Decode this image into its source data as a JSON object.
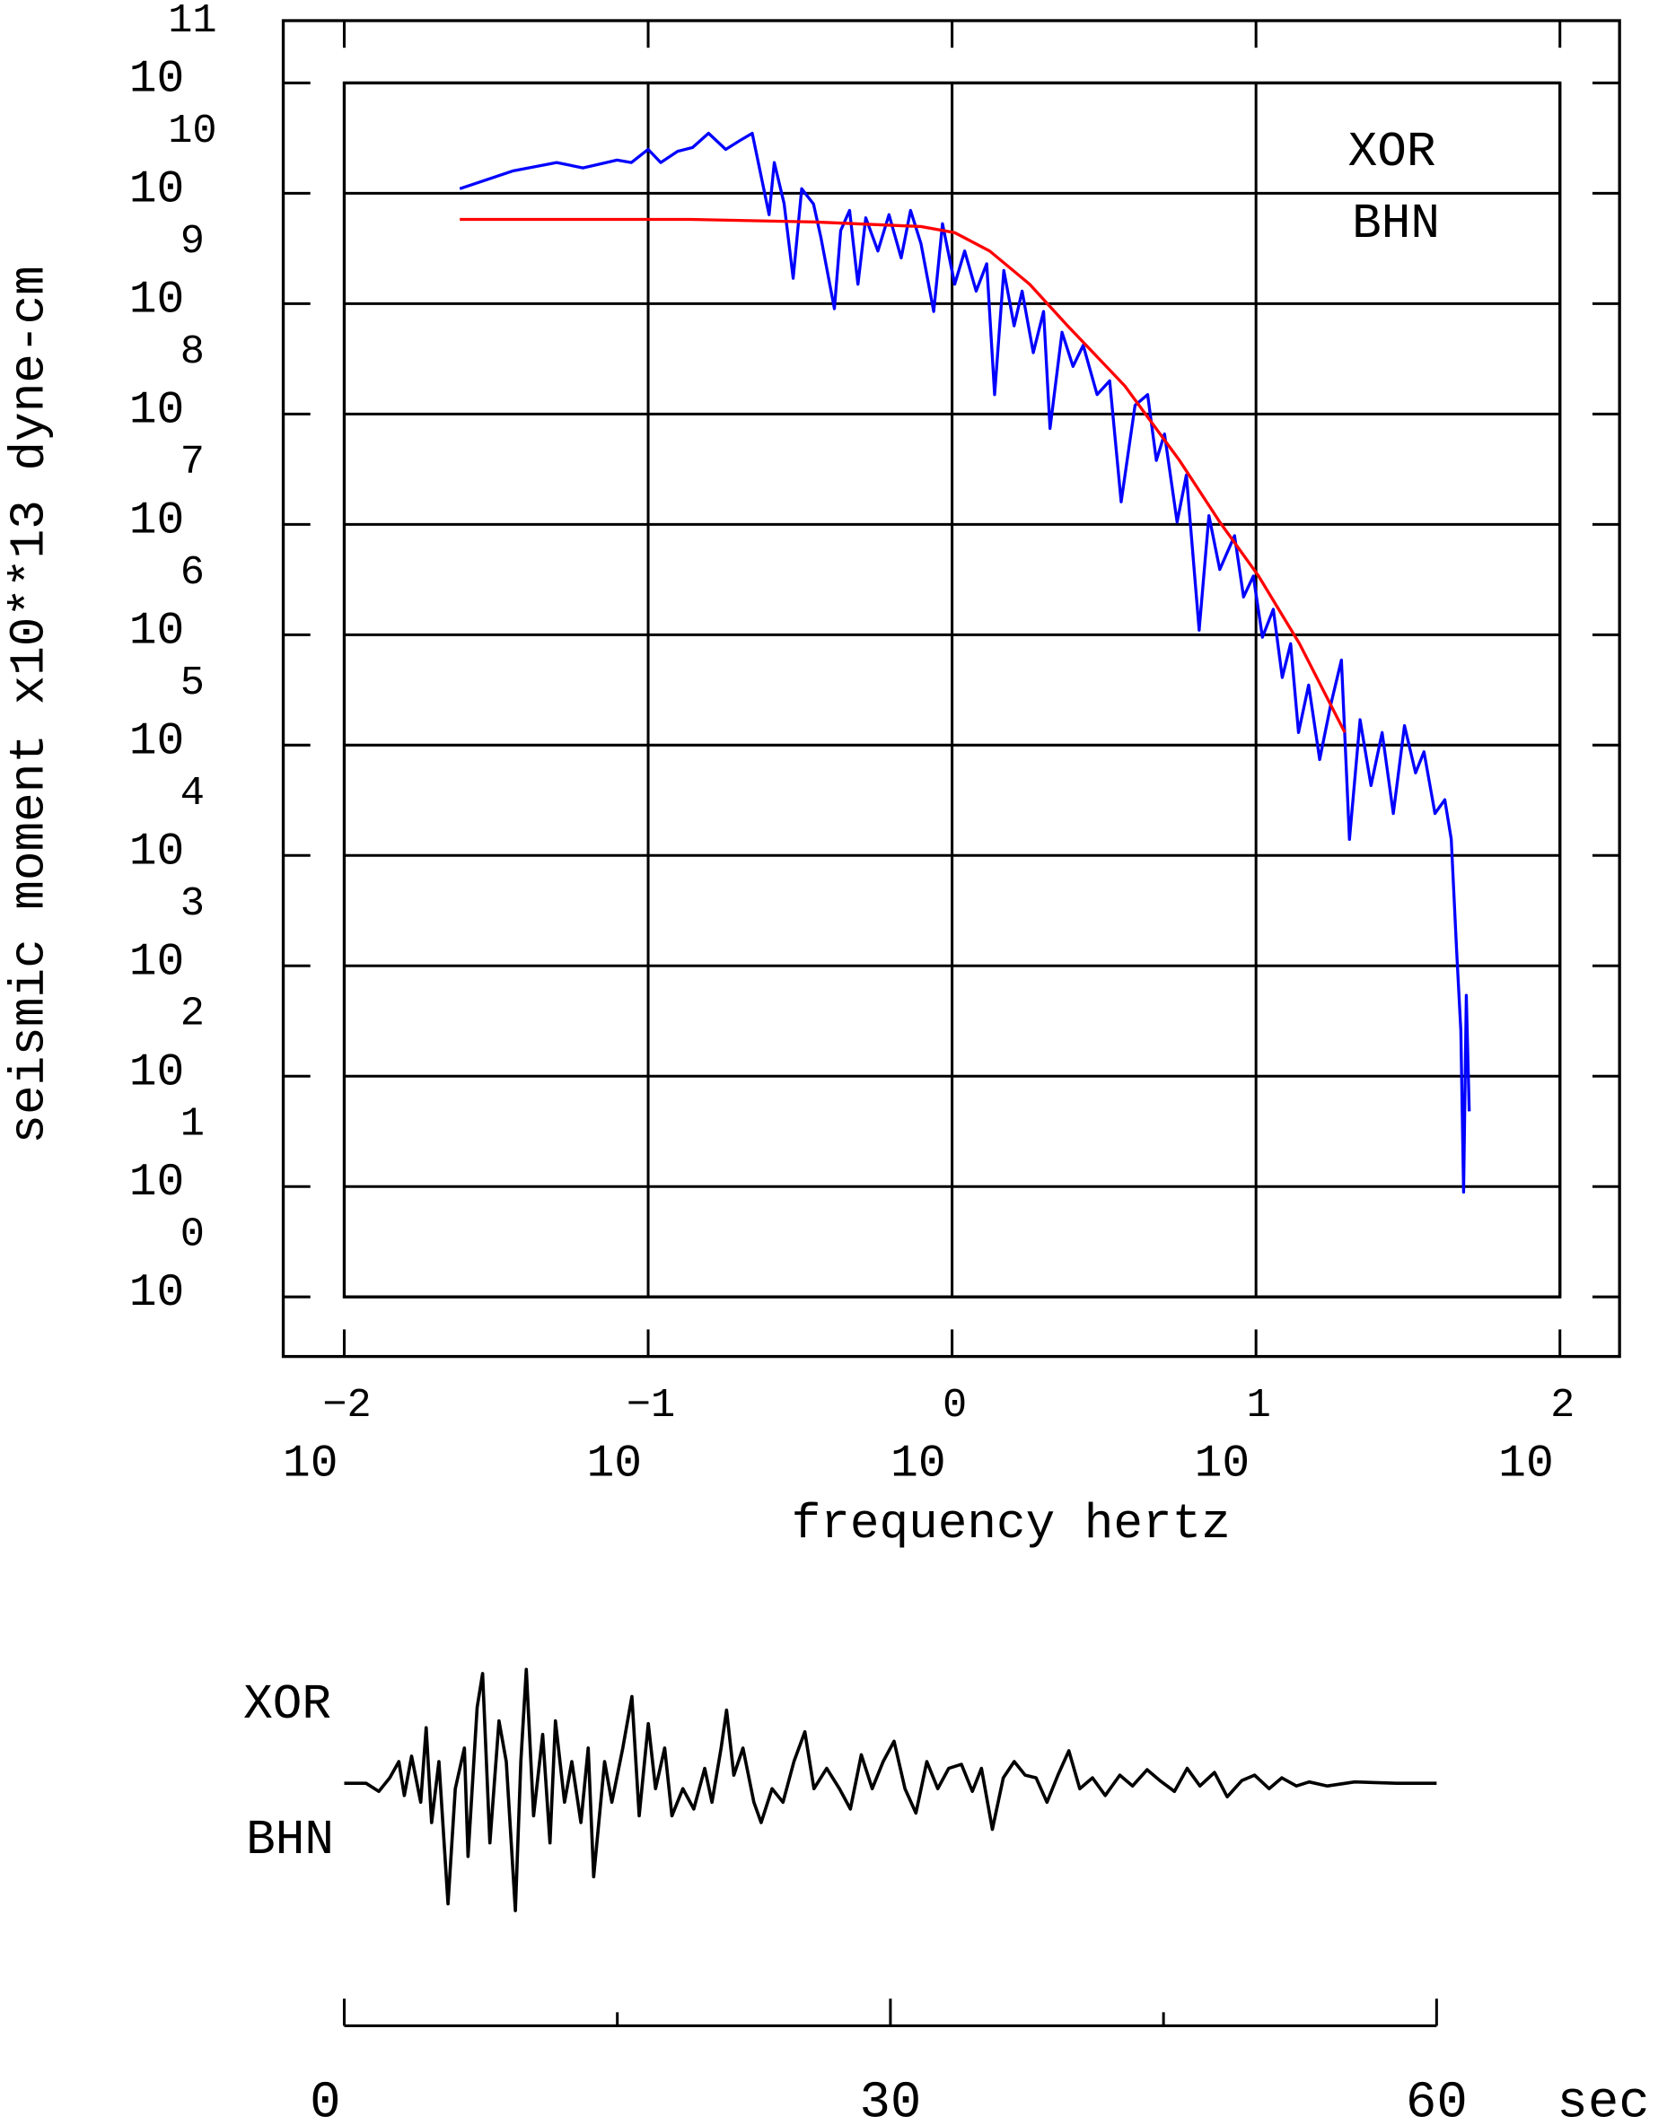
{
  "chart_data": [
    {
      "type": "line",
      "x_label": "frequency  hertz",
      "y_label": "seismic moment x10**13 dyne-cm",
      "annotations": [
        "XOR",
        "BHN"
      ],
      "xscale": "log",
      "yscale": "log",
      "grid": true,
      "xlim": [
        0.01,
        100
      ],
      "xticks": [
        {
          "value": 0.01,
          "label": "10",
          "exponent": "−2"
        },
        {
          "value": 0.1,
          "label": "10",
          "exponent": "−1"
        },
        {
          "value": 1,
          "label": "10",
          "exponent": "0"
        },
        {
          "value": 10,
          "label": "10",
          "exponent": "1"
        },
        {
          "value": 100,
          "label": "10",
          "exponent": "2"
        }
      ],
      "ylim": [
        1,
        100000000000
      ],
      "yticks": [
        {
          "value": 1,
          "label": "10",
          "exponent": "0"
        },
        {
          "value": 10,
          "label": "10",
          "exponent": "1"
        },
        {
          "value": 100,
          "label": "10",
          "exponent": "2"
        },
        {
          "value": 1000,
          "label": "10",
          "exponent": "3"
        },
        {
          "value": 10000,
          "label": "10",
          "exponent": "4"
        },
        {
          "value": 100000,
          "label": "10",
          "exponent": "5"
        },
        {
          "value": 1000000,
          "label": "10",
          "exponent": "6"
        },
        {
          "value": 10000000,
          "label": "10",
          "exponent": "7"
        },
        {
          "value": 100000000,
          "label": "10",
          "exponent": "8"
        },
        {
          "value": 1000000000,
          "label": "10",
          "exponent": "9"
        },
        {
          "value": 10000000000,
          "label": "10",
          "exponent": "10"
        },
        {
          "value": 100000000000,
          "label": "10",
          "exponent": "11"
        }
      ],
      "series": [
        {
          "color": "#0000ff",
          "x": [
            0.024,
            0.036,
            0.05,
            0.061,
            0.079,
            0.088,
            0.1,
            0.11,
            0.125,
            0.14,
            0.158,
            0.18,
            0.2,
            0.22,
            0.25,
            0.26,
            0.28,
            0.3,
            0.32,
            0.35,
            0.37,
            0.41,
            0.43,
            0.46,
            0.49,
            0.52,
            0.57,
            0.62,
            0.68,
            0.73,
            0.79,
            0.87,
            0.93,
            1.02,
            1.1,
            1.2,
            1.3,
            1.38,
            1.48,
            1.6,
            1.7,
            1.85,
            2.0,
            2.1,
            2.3,
            2.5,
            2.7,
            3.0,
            3.3,
            3.6,
            4.0,
            4.4,
            4.7,
            5.0,
            5.5,
            5.9,
            6.5,
            7.0,
            7.6,
            8.5,
            9.1,
            9.8,
            10.5,
            11.4,
            12.2,
            13.0,
            13.8,
            14.9,
            16.2,
            17.6,
            19.1,
            20.3,
            22.0,
            23.9,
            26.0,
            28.3,
            30.8,
            33.5,
            35.7,
            38.8,
            41.8,
            43.9,
            45.7,
            47.2,
            48.2,
            49.2,
            50.3
          ],
          "values": [
            11000000000.0,
            16000000000.0,
            19000000000.0,
            17000000000.0,
            20000000000.0,
            19000000000.0,
            25000000000.0,
            19000000000.0,
            24000000000.0,
            26000000000.0,
            35000000000.0,
            25000000000.0,
            30000000000.0,
            35000000000.0,
            6400000000.0,
            19000000000.0,
            8100000000.0,
            1700000000.0,
            11000000000.0,
            8000000000.0,
            4000000000.0,
            900000000.0,
            4600000000.0,
            7000000000.0,
            1500000000.0,
            6000000000.0,
            3000000000.0,
            6400000000.0,
            2600000000.0,
            7000000000.0,
            3500000000.0,
            850000000.0,
            5300000000.0,
            1500000000.0,
            3000000000.0,
            1300000000.0,
            2300000000.0,
            150000000.0,
            2000000000.0,
            630000000.0,
            1300000000.0,
            360000000.0,
            850000000.0,
            74000000.0,
            550000000.0,
            270000000.0,
            420000000.0,
            150000000.0,
            200000000.0,
            16000000.0,
            120000000.0,
            150000000.0,
            38000000.0,
            66000000.0,
            10500000.0,
            28000000.0,
            1100000.0,
            12000000.0,
            3900000.0,
            7900000.0,
            2200000.0,
            3400000.0,
            950000.0,
            1700000.0,
            410000.0,
            830000.0,
            130000.0,
            350000.0,
            74000.0,
            230000.0,
            590000.0,
            14000.0,
            170000.0,
            43000.0,
            130000.0,
            24000.0,
            150000.0,
            56000.0,
            87000.0,
            24000.0,
            32000.0,
            14000.0,
            1400.0,
            260,
            8.9,
            540,
            48
          ]
        },
        {
          "color": "#ff0000",
          "x": [
            0.024,
            0.138,
            0.35,
            0.79,
            1.02,
            1.33,
            1.8,
            2.4,
            3.7,
            5.6,
            7.6,
            10.2,
            13.9,
            19.6
          ],
          "values": [
            5800000000.0,
            5800000000.0,
            5500000000.0,
            5000000000.0,
            4400000000.0,
            3000000000.0,
            1500000000.0,
            630000000.0,
            180000000.0,
            38000000.0,
            10500000.0,
            3400000.0,
            830000.0,
            130000.0
          ]
        }
      ]
    },
    {
      "type": "line",
      "annotations": [
        "XOR",
        "BHN"
      ],
      "x_label": "sec",
      "xlim": [
        0,
        60
      ],
      "xticks": [
        0,
        30,
        60
      ],
      "minor_xticks": [
        15,
        45
      ],
      "ylim": [
        -1,
        1
      ],
      "series": [
        {
          "color": "#000000",
          "x": [
            0,
            1.2,
            1.9,
            2.5,
            3.0,
            3.3,
            3.7,
            4.2,
            4.5,
            4.8,
            5.2,
            5.7,
            6.1,
            6.6,
            6.8,
            7.3,
            7.6,
            8.0,
            8.5,
            8.9,
            9.4,
            9.7,
            10.0,
            10.4,
            10.9,
            11.3,
            11.6,
            12.1,
            12.5,
            13.0,
            13.4,
            13.7,
            14.3,
            14.7,
            15.3,
            15.8,
            16.2,
            16.7,
            17.1,
            17.6,
            18.0,
            18.6,
            19.2,
            19.8,
            20.2,
            20.7,
            21.0,
            21.4,
            21.9,
            22.5,
            22.9,
            23.5,
            24.1,
            24.7,
            25.3,
            25.8,
            26.5,
            27.2,
            27.8,
            28.4,
            29.0,
            29.6,
            30.2,
            30.8,
            31.4,
            32.0,
            32.6,
            33.2,
            33.9,
            34.5,
            35.0,
            35.6,
            36.2,
            36.8,
            37.4,
            38.0,
            38.6,
            39.2,
            39.8,
            40.4,
            41.1,
            41.8,
            42.6,
            43.3,
            44.1,
            44.8,
            45.6,
            46.3,
            47.0,
            47.8,
            48.5,
            49.3,
            50.0,
            50.8,
            51.5,
            52.3,
            53.0,
            54.0,
            55.5,
            57.8,
            60
          ],
          "values": [
            0,
            0,
            -0.06,
            0.04,
            0.16,
            -0.09,
            0.2,
            -0.14,
            0.41,
            -0.29,
            0.16,
            -0.89,
            -0.04,
            0.26,
            -0.54,
            0.56,
            0.81,
            -0.44,
            0.46,
            0.16,
            -0.94,
            0.16,
            0.84,
            -0.24,
            0.36,
            -0.44,
            0.46,
            -0.14,
            0.16,
            -0.29,
            0.26,
            -0.69,
            0.16,
            -0.14,
            0.26,
            0.64,
            -0.24,
            0.44,
            -0.04,
            0.26,
            -0.24,
            -0.04,
            -0.19,
            0.11,
            -0.14,
            0.26,
            0.54,
            0.06,
            0.26,
            -0.14,
            -0.29,
            -0.04,
            -0.14,
            0.16,
            0.38,
            -0.04,
            0.11,
            -0.04,
            -0.19,
            0.21,
            -0.04,
            0.16,
            0.31,
            -0.04,
            -0.22,
            0.16,
            -0.04,
            0.11,
            0.14,
            -0.06,
            0.11,
            -0.34,
            0.04,
            0.16,
            0.06,
            0.04,
            -0.14,
            0.06,
            0.24,
            -0.04,
            0.04,
            -0.09,
            0.06,
            -0.02,
            0.1,
            0.02,
            -0.06,
            0.11,
            -0.02,
            0.08,
            -0.1,
            0.02,
            0.06,
            -0.04,
            0.04,
            -0.02,
            0.01,
            -0.02,
            0.01,
            0,
            0
          ]
        }
      ]
    }
  ]
}
